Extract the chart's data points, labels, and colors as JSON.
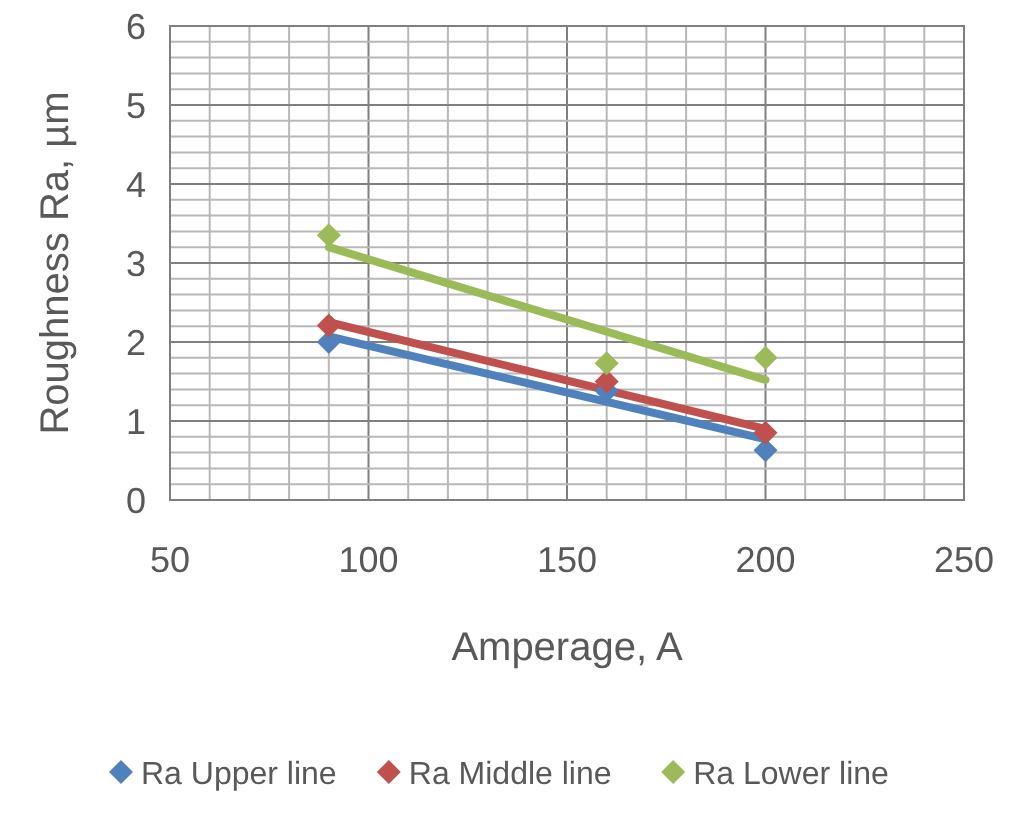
{
  "chart_data": {
    "type": "scatter",
    "xlabel": "Amperage, A",
    "ylabel": "Roughness Ra, µm",
    "xlim": [
      50,
      250
    ],
    "ylim": [
      0,
      6
    ],
    "xticks": [
      50,
      {
        "value": 60,
        "label": null
      },
      {
        "value": 70,
        "label": null
      },
      {
        "value": 80,
        "label": null
      },
      {
        "value": 90,
        "label": null
      },
      100,
      {
        "value": 110,
        "label": null
      },
      {
        "value": 120,
        "label": null
      },
      {
        "value": 130,
        "label": null
      },
      {
        "value": 140,
        "label": null
      },
      150,
      {
        "value": 160,
        "label": null
      },
      {
        "value": 170,
        "label": null
      },
      {
        "value": 180,
        "label": null
      },
      {
        "value": 190,
        "label": null
      },
      200,
      {
        "value": 210,
        "label": null
      },
      {
        "value": 220,
        "label": null
      },
      {
        "value": 230,
        "label": null
      },
      {
        "value": 240,
        "label": null
      },
      250
    ],
    "yticks": [
      0,
      {
        "value": 0.2,
        "label": null
      },
      {
        "value": 0.4,
        "label": null
      },
      {
        "value": 0.6,
        "label": null
      },
      {
        "value": 0.8,
        "label": null
      },
      1,
      {
        "value": 1.2,
        "label": null
      },
      {
        "value": 1.4,
        "label": null
      },
      {
        "value": 1.6,
        "label": null
      },
      {
        "value": 1.8,
        "label": null
      },
      2,
      {
        "value": 2.2,
        "label": null
      },
      {
        "value": 2.4,
        "label": null
      },
      {
        "value": 2.6,
        "label": null
      },
      {
        "value": 2.8,
        "label": null
      },
      3,
      {
        "value": 3.2,
        "label": null
      },
      {
        "value": 3.4,
        "label": null
      },
      {
        "value": 3.6,
        "label": null
      },
      {
        "value": 3.8,
        "label": null
      },
      4,
      {
        "value": 4.2,
        "label": null
      },
      {
        "value": 4.4,
        "label": null
      },
      {
        "value": 4.6,
        "label": null
      },
      {
        "value": 4.8,
        "label": null
      },
      5,
      {
        "value": 5.2,
        "label": null
      },
      {
        "value": 5.4,
        "label": null
      },
      {
        "value": 5.6,
        "label": null
      },
      {
        "value": 5.8,
        "label": null
      },
      6
    ],
    "grid": true,
    "legend": "bottom",
    "marker": "diamond",
    "series": [
      {
        "name": "Ra Upper line",
        "color": "#4f81bd",
        "x": [
          90,
          160,
          200
        ],
        "values": [
          2.0,
          1.38,
          0.63
        ]
      },
      {
        "name": "Ra Middle line",
        "color": "#c0504d",
        "x": [
          90,
          160,
          200
        ],
        "values": [
          2.21,
          1.5,
          0.85
        ]
      },
      {
        "name": "Ra Lower line",
        "color": "#9bbb59",
        "x": [
          90,
          160,
          200
        ],
        "values": [
          3.35,
          1.73,
          1.8
        ]
      },
      {
        "type": "line",
        "marker": "none",
        "color": "#4f81bd",
        "x": [
          90,
          200
        ],
        "values": [
          2.07,
          0.77
        ]
      },
      {
        "type": "line",
        "marker": "none",
        "color": "#c0504d",
        "x": [
          90,
          200
        ],
        "values": [
          2.25,
          0.9
        ]
      },
      {
        "type": "line",
        "marker": "none",
        "color": "#9bbb59",
        "x": [
          90,
          200
        ],
        "values": [
          3.2,
          1.52
        ]
      }
    ]
  }
}
